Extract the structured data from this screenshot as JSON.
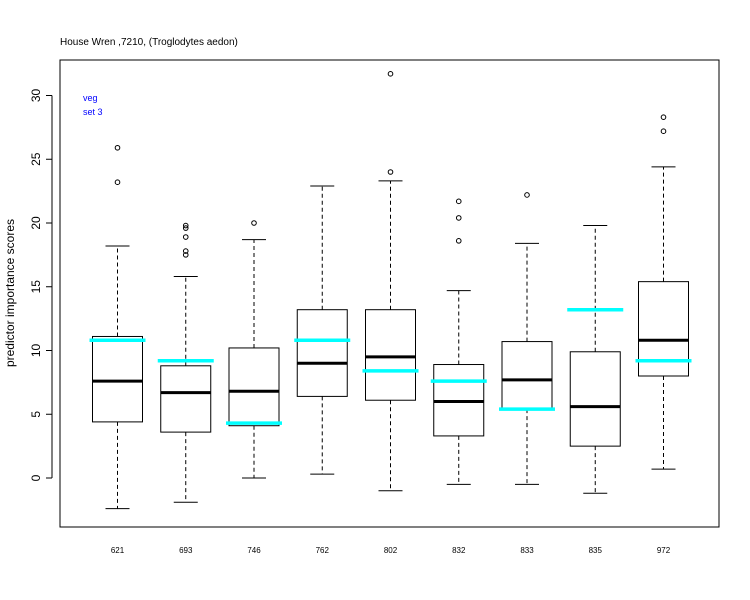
{
  "chart_data": {
    "type": "boxplot",
    "title": "House Wren ,7210, (Troglodytes aedon)",
    "ylabel": "predictor importance scores",
    "xlabel": "",
    "ylim": [
      -3.7,
      33
    ],
    "yticks": [
      0,
      5,
      10,
      15,
      20,
      25,
      30
    ],
    "grid": false,
    "annotation": {
      "lines": [
        "veg",
        "set 3"
      ],
      "color": "#0000ff",
      "placement": "top-left"
    },
    "median_color": "#000000",
    "marker_color": "#00ffff",
    "categories": [
      "621",
      "693",
      "746",
      "762",
      "802",
      "832",
      "833",
      "835",
      "972"
    ],
    "boxes": [
      {
        "label": "621",
        "whisker_low": -2.4,
        "q1": 4.4,
        "median": 7.6,
        "q3": 11.1,
        "whisker_high": 18.2,
        "outliers": [
          23.2,
          25.9
        ],
        "marker": 10.8
      },
      {
        "label": "693",
        "whisker_low": -1.9,
        "q1": 3.6,
        "median": 6.7,
        "q3": 8.8,
        "whisker_high": 15.8,
        "outliers": [
          17.5,
          17.8,
          18.9,
          19.6,
          19.8
        ],
        "marker": 9.2
      },
      {
        "label": "746",
        "whisker_low": 0.0,
        "q1": 4.1,
        "median": 6.8,
        "q3": 10.2,
        "whisker_high": 18.7,
        "outliers": [
          20.0
        ],
        "marker": 4.3
      },
      {
        "label": "762",
        "whisker_low": 0.3,
        "q1": 6.4,
        "median": 9.0,
        "q3": 13.2,
        "whisker_high": 22.9,
        "outliers": [],
        "marker": 10.8
      },
      {
        "label": "802",
        "whisker_low": -1.0,
        "q1": 6.1,
        "median": 9.5,
        "q3": 13.2,
        "whisker_high": 23.3,
        "outliers": [
          24.0,
          31.7
        ],
        "marker": 8.4
      },
      {
        "label": "832",
        "whisker_low": -0.5,
        "q1": 3.3,
        "median": 6.0,
        "q3": 8.9,
        "whisker_high": 14.7,
        "outliers": [
          18.6,
          20.4,
          21.7
        ],
        "marker": 7.6
      },
      {
        "label": "833",
        "whisker_low": -0.5,
        "q1": 5.4,
        "median": 7.7,
        "q3": 10.7,
        "whisker_high": 18.4,
        "outliers": [
          22.2
        ],
        "marker": 5.4
      },
      {
        "label": "835",
        "whisker_low": -1.2,
        "q1": 2.5,
        "median": 5.6,
        "q3": 9.9,
        "whisker_high": 19.8,
        "outliers": [],
        "marker": 13.2
      },
      {
        "label": "972",
        "whisker_low": 0.7,
        "q1": 8.0,
        "median": 10.8,
        "q3": 15.4,
        "whisker_high": 24.4,
        "outliers": [
          27.2,
          28.3
        ],
        "marker": 9.2
      }
    ]
  }
}
